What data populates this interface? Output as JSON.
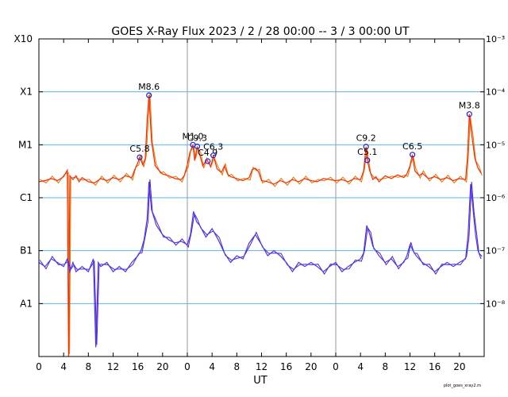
{
  "chart_data": {
    "type": "line",
    "title": "GOES X-Ray Flux   2023 /  2 / 28   00:00 --  3 /  3   00:00   UT",
    "xlabel": "UT",
    "x_tick_labels": [
      "0",
      "4",
      "8",
      "12",
      "16",
      "20",
      "0",
      "4",
      "8",
      "12",
      "16",
      "20",
      "0",
      "4",
      "8",
      "12",
      "16",
      "20"
    ],
    "y_left_labels": [
      "X10",
      "X1",
      "M1",
      "C1",
      "B1",
      "A1"
    ],
    "y_right_labels": [
      "10⁻³",
      "10⁻⁴",
      "10⁻⁵",
      "10⁻⁶",
      "10⁻⁷",
      "10⁻⁸"
    ],
    "y_scale": "log",
    "ylim_log10": [
      -9.0,
      -3.0
    ],
    "xlim_hours": [
      0,
      72
    ],
    "day_boundaries_hours": [
      24,
      48
    ],
    "grid": true,
    "credit": "plot_goes_xray2.m",
    "colors": {
      "long_primary": "#ff2a00",
      "long_secondary": "#e07800",
      "short_primary": "#3c3cff",
      "short_secondary": "#6a1ab8",
      "grid": "#57b7e7",
      "day_line": "#9a9a9a",
      "marker": "#2020e0"
    },
    "flares": [
      {
        "label": "C5.8",
        "hour": 16.3
      },
      {
        "label": "M8.6",
        "hour": 17.8
      },
      {
        "label": "M1.0",
        "hour": 24.9
      },
      {
        "label": "C9.3",
        "hour": 25.6
      },
      {
        "label": "C4.9",
        "hour": 27.3
      },
      {
        "label": "C6.3",
        "hour": 28.2
      },
      {
        "label": "C9.2",
        "hour": 52.9
      },
      {
        "label": "C5.1",
        "hour": 53.1
      },
      {
        "label": "C6.5",
        "hour": 60.4
      },
      {
        "label": "M3.8",
        "hour": 69.6
      }
    ],
    "series": [
      {
        "name": "",
        "channel": "long",
        "x": [
          0,
          1,
          2,
          3,
          4,
          4.6,
          4.8,
          5,
          5.5,
          6,
          6.5,
          7,
          8,
          9,
          10,
          11,
          12,
          13,
          14,
          15,
          15.5,
          16,
          16.3,
          16.8,
          17.2,
          17.5,
          17.8,
          18.2,
          18.8,
          19.5,
          20,
          21,
          22,
          23,
          23.5,
          24,
          24.4,
          24.9,
          25.2,
          25.6,
          26,
          26.5,
          27,
          27.3,
          27.8,
          28.2,
          28.8,
          29.5,
          30,
          30.5,
          31,
          32,
          33,
          34,
          34.5,
          35,
          35.5,
          36,
          37,
          38,
          39,
          40,
          41,
          42,
          43,
          44,
          45,
          46,
          47,
          48,
          49,
          50,
          51,
          52,
          52.5,
          52.9,
          53.1,
          53.5,
          54,
          54.5,
          55,
          56,
          57,
          58,
          59,
          59.5,
          60,
          60.4,
          60.8,
          61.5,
          62,
          63,
          64,
          65,
          66,
          67,
          68,
          69,
          69.3,
          69.6,
          70,
          70.5,
          71,
          71.5
        ],
        "y": [
          2e-06,
          2.1e-06,
          2.3e-06,
          2.1e-06,
          2.5e-06,
          3.3e-06,
          1e-09,
          2.6e-06,
          2.2e-06,
          2.6e-06,
          2e-06,
          2.4e-06,
          2e-06,
          1.9e-06,
          2.3e-06,
          2.1e-06,
          2.4e-06,
          2.2e-06,
          2.6e-06,
          2.4e-06,
          3.4e-06,
          4.6e-06,
          5.8e-06,
          4.2e-06,
          5.5e-06,
          3e-05,
          8.6e-05,
          1.2e-05,
          4e-06,
          3.2e-06,
          2.8e-06,
          2.6e-06,
          2.3e-06,
          2.2e-06,
          2.6e-06,
          4.2e-06,
          7e-06,
          1e-05,
          5e-06,
          9.3e-06,
          6.5e-06,
          4e-06,
          5e-06,
          4.9e-06,
          3.8e-06,
          6.3e-06,
          3.5e-06,
          3e-06,
          4e-06,
          2.8e-06,
          2.5e-06,
          2.3e-06,
          2.1e-06,
          2.4e-06,
          3.4e-06,
          3.6e-06,
          3.1e-06,
          2.1e-06,
          2e-06,
          1.8e-06,
          2.1e-06,
          1.9e-06,
          2.2e-06,
          2e-06,
          2.3e-06,
          2.1e-06,
          2e-06,
          2.3e-06,
          2.2e-06,
          2.1e-06,
          2.2e-06,
          2e-06,
          2.3e-06,
          2.2e-06,
          3.2e-06,
          9.2e-06,
          5.1e-06,
          3.2e-06,
          2.2e-06,
          2.5e-06,
          2e-06,
          2.6e-06,
          2.3e-06,
          2.7e-06,
          2.4e-06,
          2.8e-06,
          4e-06,
          6.5e-06,
          3.2e-06,
          2.6e-06,
          2.9e-06,
          2.3e-06,
          2.5e-06,
          2.2e-06,
          2.4e-06,
          2.1e-06,
          2.3e-06,
          2.2e-06,
          6e-06,
          3.8e-05,
          1.5e-05,
          5.5e-06,
          3.6e-06,
          2.9e-06
        ]
      },
      {
        "name": "",
        "channel": "short",
        "x": [
          0,
          1,
          2,
          3,
          4,
          4.6,
          5,
          5.5,
          6,
          7,
          8,
          8.8,
          9.2,
          9.6,
          10,
          11,
          12,
          13,
          14,
          15,
          16,
          16.5,
          17,
          17.5,
          17.8,
          18.2,
          19,
          20,
          21,
          22,
          23,
          24,
          24.5,
          25,
          25.5,
          26,
          27,
          28,
          29,
          30,
          31,
          32,
          33,
          34,
          35,
          36,
          37,
          38,
          39,
          40,
          41,
          42,
          43,
          44,
          45,
          46,
          47,
          48,
          49,
          50,
          51,
          52,
          52.5,
          53,
          53.5,
          54,
          55,
          56,
          57,
          58,
          59,
          59.5,
          60,
          60.5,
          61,
          62,
          63,
          64,
          65,
          66,
          67,
          68,
          69,
          69.4,
          69.8,
          70.2,
          70.6,
          71,
          71.5
        ],
        "y": [
          6e-08,
          5e-08,
          7e-08,
          6e-08,
          5e-08,
          7e-08,
          4e-08,
          6e-08,
          4e-08,
          5e-08,
          4e-08,
          7e-08,
          1.5e-09,
          6e-08,
          5e-08,
          6e-08,
          4e-08,
          5e-08,
          4e-08,
          6e-08,
          8e-08,
          1e-07,
          1.6e-07,
          4e-07,
          2e-06,
          6e-07,
          3e-07,
          2e-07,
          1.6e-07,
          1.4e-07,
          1.5e-07,
          1.3e-07,
          2e-07,
          5.5e-07,
          3.5e-07,
          3e-07,
          1.8e-07,
          2.6e-07,
          1.6e-07,
          9e-08,
          6e-08,
          8e-08,
          7e-08,
          1.4e-07,
          2e-07,
          1.3e-07,
          8e-08,
          1e-07,
          8e-08,
          6e-08,
          4e-08,
          6e-08,
          5e-08,
          6e-08,
          5e-08,
          4e-08,
          5e-08,
          6e-08,
          4e-08,
          5e-08,
          6e-08,
          7e-08,
          9e-08,
          3e-07,
          2e-07,
          1.2e-07,
          8e-08,
          6e-08,
          7e-08,
          5e-08,
          6e-08,
          8e-08,
          1.3e-07,
          1e-07,
          8e-08,
          6e-08,
          5e-08,
          4e-08,
          5e-08,
          6e-08,
          5e-08,
          6e-08,
          7e-08,
          2e-07,
          1.8e-06,
          6e-07,
          2e-07,
          1e-07,
          7e-08
        ]
      }
    ]
  }
}
